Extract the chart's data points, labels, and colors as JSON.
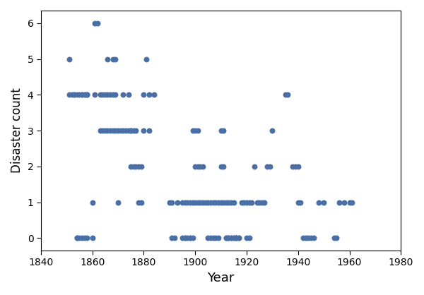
{
  "xlabel": "Year",
  "ylabel": "Disaster count",
  "xlim": [
    1840,
    1980
  ],
  "ylim": [
    -0.35,
    6.35
  ],
  "xticks": [
    1840,
    1860,
    1880,
    1900,
    1920,
    1940,
    1960,
    1980
  ],
  "yticks": [
    0,
    1,
    2,
    3,
    4,
    5,
    6
  ],
  "dot_color": "#4a6fa5",
  "dot_size": 22,
  "years": [
    1851,
    1852,
    1853,
    1854,
    1854,
    1855,
    1856,
    1857,
    1858,
    1860,
    1851,
    1853,
    1854,
    1855,
    1856,
    1857,
    1858,
    1856,
    1857,
    1858,
    1860,
    1861,
    1861,
    1862,
    1863,
    1864,
    1865,
    1863,
    1864,
    1865,
    1866,
    1867,
    1868,
    1869,
    1866,
    1867,
    1868,
    1869,
    1866,
    1868,
    1869,
    1870,
    1870,
    1871,
    1872,
    1873,
    1874,
    1875,
    1872,
    1874,
    1875,
    1876,
    1877,
    1875,
    1876,
    1877,
    1878,
    1879,
    1878,
    1879,
    1880,
    1880,
    1881,
    1882,
    1882,
    1884,
    1890,
    1891,
    1891,
    1892,
    1893,
    1895,
    1896,
    1896,
    1897,
    1898,
    1898,
    1899,
    1895,
    1896,
    1897,
    1898,
    1899,
    1900,
    1901,
    1899,
    1900,
    1901,
    1902,
    1903,
    1900,
    1901,
    1902,
    1903,
    1904,
    1905,
    1906,
    1907,
    1908,
    1909,
    1905,
    1906,
    1907,
    1908,
    1909,
    1910,
    1911,
    1910,
    1911,
    1912,
    1913,
    1910,
    1911,
    1912,
    1913,
    1914,
    1915,
    1914,
    1915,
    1916,
    1917,
    1916,
    1917,
    1918,
    1919,
    1920,
    1921,
    1922,
    1912,
    1913,
    1914,
    1915,
    1916,
    1920,
    1921,
    1923,
    1924,
    1925,
    1926,
    1927,
    1928,
    1929,
    1930,
    1935,
    1936,
    1938,
    1939,
    1940,
    1940,
    1941,
    1942,
    1943,
    1944,
    1945,
    1946,
    1948,
    1950,
    1954,
    1955,
    1956,
    1958,
    1960,
    1961
  ],
  "counts": [
    4,
    4,
    4,
    4,
    0,
    4,
    4,
    4,
    4,
    0,
    5,
    4,
    0,
    0,
    0,
    0,
    0,
    4,
    4,
    4,
    1,
    4,
    6,
    6,
    3,
    3,
    3,
    4,
    4,
    4,
    4,
    4,
    4,
    4,
    3,
    3,
    3,
    3,
    5,
    5,
    5,
    3,
    1,
    3,
    3,
    3,
    3,
    3,
    4,
    4,
    2,
    2,
    2,
    3,
    3,
    3,
    2,
    2,
    1,
    1,
    3,
    4,
    5,
    3,
    4,
    4,
    1,
    1,
    0,
    0,
    1,
    1,
    1,
    0,
    1,
    1,
    0,
    1,
    0,
    0,
    0,
    0,
    0,
    1,
    1,
    3,
    3,
    3,
    1,
    1,
    2,
    2,
    2,
    2,
    1,
    1,
    1,
    1,
    1,
    1,
    0,
    0,
    0,
    0,
    0,
    3,
    3,
    2,
    2,
    1,
    1,
    1,
    1,
    0,
    0,
    1,
    1,
    0,
    0,
    0,
    0,
    0,
    0,
    1,
    1,
    1,
    1,
    1,
    0,
    0,
    0,
    0,
    0,
    0,
    0,
    2,
    1,
    1,
    1,
    1,
    2,
    2,
    3,
    4,
    4,
    2,
    2,
    2,
    1,
    1,
    0,
    0,
    0,
    0,
    0,
    1,
    1,
    0,
    0,
    1,
    1,
    1,
    1
  ]
}
